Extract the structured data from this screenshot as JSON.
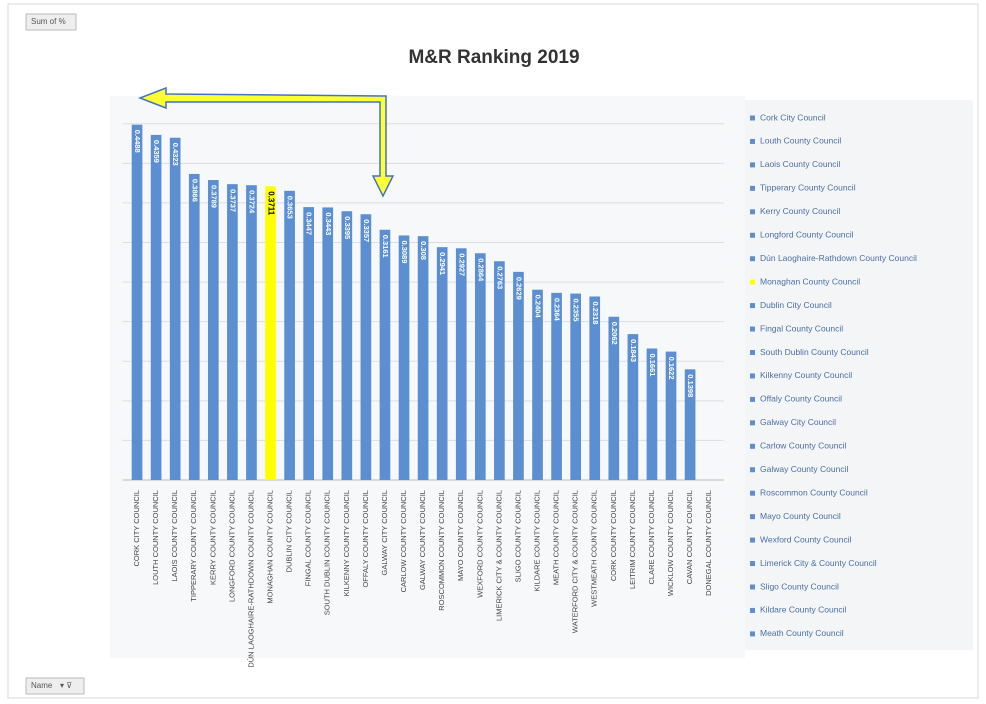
{
  "chart_data": {
    "type": "bar",
    "title": "M&R Ranking 2019",
    "field_button": "Sum of %",
    "axis_button": "Name",
    "categories": [
      "CORK CITY COUNCIL",
      "LOUTH COUNTY COUNCIL",
      "LAOIS COUNTY COUNCIL",
      "TIPPERARY COUNTY COUNCIL",
      "KERRY COUNTY COUNCIL",
      "LONGFORD COUNTY COUNCIL",
      "DÚN LAOGHAIRE-RATHDOWN COUNTY COUNCIL",
      "MONAGHAN COUNTY COUNCIL",
      "DUBLIN CITY COUNCIL",
      "FINGAL COUNTY COUNCIL",
      "SOUTH DUBLIN COUNTY COUNCIL",
      "KILKENNY COUNTY COUNCIL",
      "OFFALY COUNTY COUNCIL",
      "GALWAY CITY COUNCIL",
      "CARLOW COUNTY COUNCIL",
      "GALWAY COUNTY COUNCIL",
      "ROSCOMMON COUNTY COUNCIL",
      "MAYO COUNTY COUNCIL",
      "WEXFORD COUNTY COUNCIL",
      "LIMERICK CITY & COUNTY COUNCIL",
      "SLIGO COUNTY COUNCIL",
      "KILDARE COUNTY COUNCIL",
      "MEATH COUNTY COUNCIL",
      "WATERFORD CITY & COUNTY COUNCIL",
      "WESTMEATH COUNTY COUNCIL",
      "CORK COUNTY COUNCIL",
      "LEITRIM COUNTY COUNCIL",
      "CLARE COUNTY COUNCIL",
      "WICKLOW COUNTY COUNCIL",
      "CAVAN COUNTY COUNCIL",
      "DONEGAL COUNTY COUNCIL"
    ],
    "values": [
      0.4488,
      0.4359,
      0.4323,
      0.3866,
      0.3789,
      0.3737,
      0.3724,
      0.3711,
      0.3653,
      0.3447,
      0.3443,
      0.3395,
      0.3357,
      0.3161,
      0.3089,
      0.308,
      0.2941,
      0.2927,
      0.2864,
      0.2763,
      0.2629,
      0.2404,
      0.2364,
      0.2355,
      0.2318,
      0.2062,
      0.1843,
      0.1661,
      0.1622,
      0.1398,
      null
    ],
    "colors": [
      "#5b8fd1",
      "#5b8fd1",
      "#5b8fd1",
      "#5b8fd1",
      "#5b8fd1",
      "#5b8fd1",
      "#5b8fd1",
      "#ffff00",
      "#5b8fd1",
      "#5b8fd1",
      "#5b8fd1",
      "#5b8fd1",
      "#5b8fd1",
      "#5b8fd1",
      "#5b8fd1",
      "#5b8fd1",
      "#5b8fd1",
      "#5b8fd1",
      "#5b8fd1",
      "#5b8fd1",
      "#5b8fd1",
      "#5b8fd1",
      "#5b8fd1",
      "#5b8fd1",
      "#5b8fd1",
      "#5b8fd1",
      "#5b8fd1",
      "#5b8fd1",
      "#5b8fd1",
      "#5b8fd1",
      "#5b8fd1"
    ],
    "legend": [
      "Cork City Council",
      "Louth County Council",
      "Laois County Council",
      "Tipperary County Council",
      "Kerry County Council",
      "Longford County Council",
      "Dún Laoghaire-Rathdown County Council",
      "Monaghan County Council",
      "Dublin City Council",
      "Fingal County Council",
      "South Dublin County Council",
      "Kilkenny County Council",
      "Offaly County Council",
      "Galway City Council",
      "Carlow County Council",
      "Galway County Council",
      "Roscommon County Council",
      "Mayo County Council",
      "Wexford County Council",
      "Limerick City & County Council",
      "Sligo County Council",
      "Kildare County Council",
      "Meath County Council"
    ],
    "ylim": [
      0,
      0.48
    ],
    "gridlines": [
      0.05,
      0.1,
      0.15,
      0.2,
      0.25,
      0.3,
      0.35,
      0.4,
      0.45
    ],
    "grid": true
  }
}
